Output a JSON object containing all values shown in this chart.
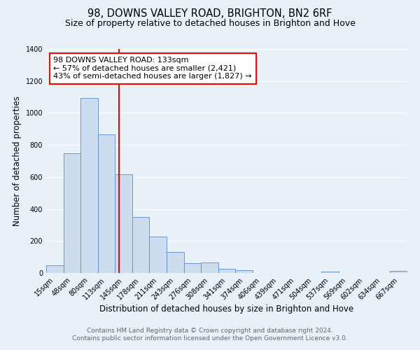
{
  "title": "98, DOWNS VALLEY ROAD, BRIGHTON, BN2 6RF",
  "subtitle": "Size of property relative to detached houses in Brighton and Hove",
  "xlabel": "Distribution of detached houses by size in Brighton and Hove",
  "ylabel": "Number of detached properties",
  "bar_labels": [
    "15sqm",
    "48sqm",
    "80sqm",
    "113sqm",
    "145sqm",
    "178sqm",
    "211sqm",
    "243sqm",
    "276sqm",
    "308sqm",
    "341sqm",
    "374sqm",
    "406sqm",
    "439sqm",
    "471sqm",
    "504sqm",
    "537sqm",
    "569sqm",
    "602sqm",
    "634sqm",
    "667sqm"
  ],
  "bar_values": [
    48,
    750,
    1095,
    865,
    615,
    348,
    228,
    130,
    60,
    65,
    25,
    18,
    0,
    0,
    0,
    0,
    10,
    0,
    0,
    0,
    12
  ],
  "bar_color": "#cddcef",
  "bar_edge_color": "#5b8cc8",
  "property_line_x": 3.72,
  "property_line_color": "red",
  "annotation_line1": "98 DOWNS VALLEY ROAD: 133sqm",
  "annotation_line2": "← 57% of detached houses are smaller (2,421)",
  "annotation_line3": "43% of semi-detached houses are larger (1,827) →",
  "annotation_box_color": "white",
  "annotation_box_edge_color": "red",
  "ylim": [
    0,
    1400
  ],
  "yticks": [
    0,
    200,
    400,
    600,
    800,
    1000,
    1200,
    1400
  ],
  "footer_line1": "Contains HM Land Registry data © Crown copyright and database right 2024.",
  "footer_line2": "Contains public sector information licensed under the Open Government Licence v3.0.",
  "bg_color": "#e8f0f8",
  "plot_bg_color": "#e8f0f8",
  "grid_color": "white",
  "title_fontsize": 10.5,
  "subtitle_fontsize": 9,
  "xlabel_fontsize": 8.5,
  "ylabel_fontsize": 8.5,
  "tick_fontsize": 7,
  "annotation_fontsize": 8,
  "footer_fontsize": 6.5
}
